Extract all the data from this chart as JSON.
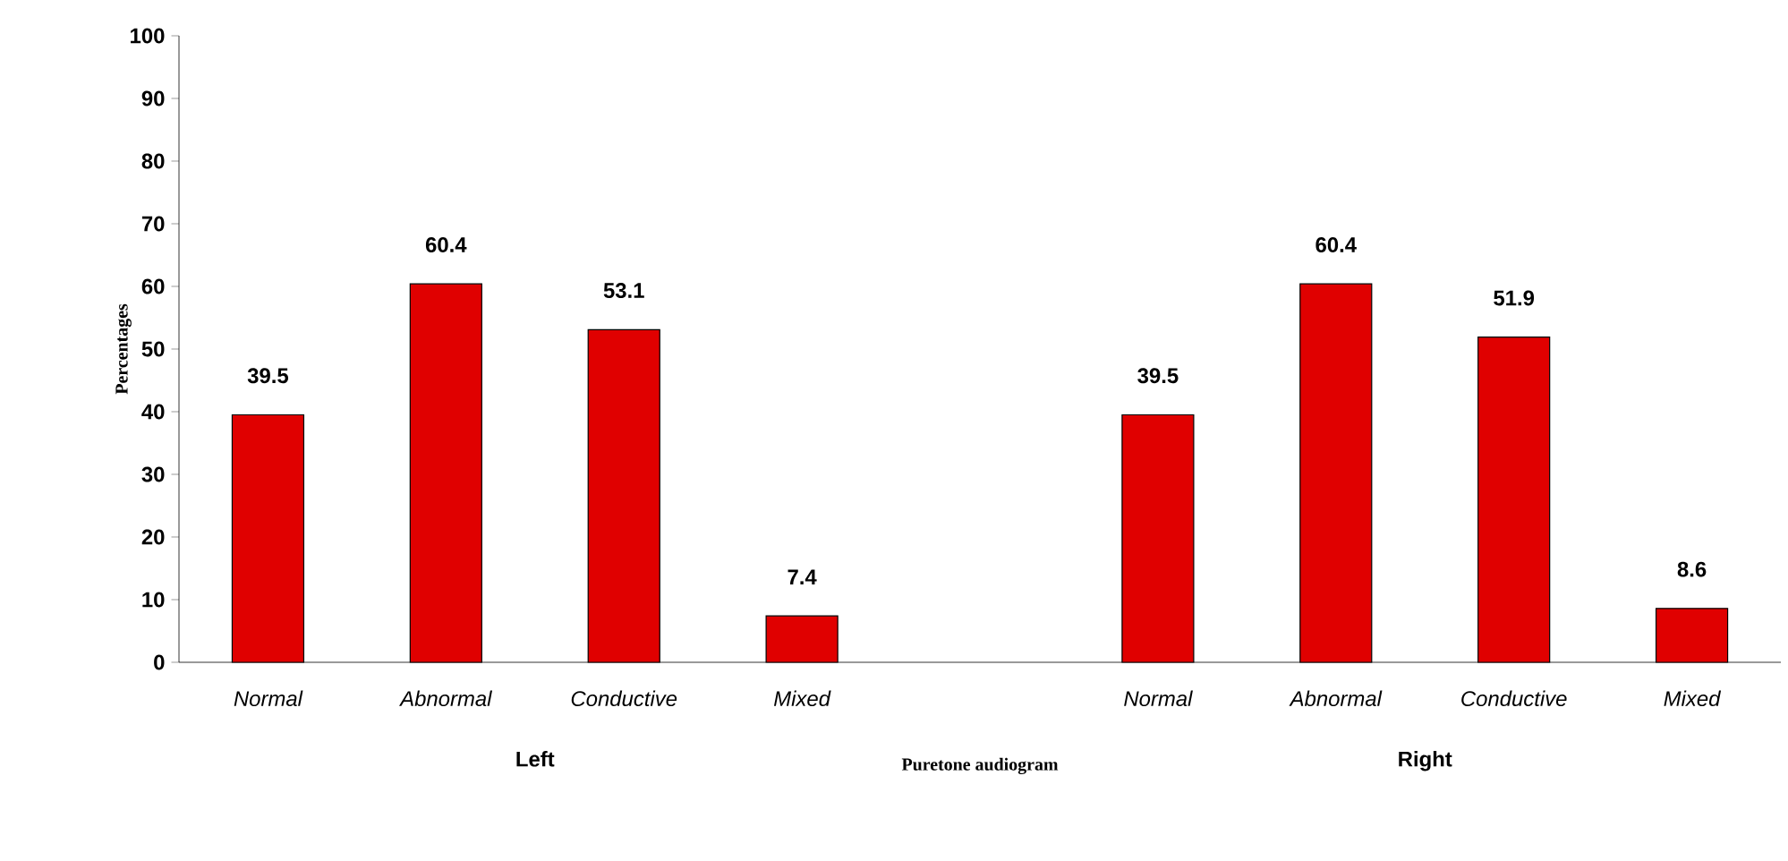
{
  "chart_data": {
    "type": "bar",
    "xlabel": "Puretone audiogram",
    "ylabel": "Percentages",
    "categories": [
      "Normal",
      "Abnormal",
      "Conductive",
      "Mixed",
      null,
      "Normal",
      "Abnormal",
      "Conductive",
      "Mixed"
    ],
    "values": [
      39.5,
      60.4,
      53.1,
      7.4,
      null,
      39.5,
      60.4,
      51.9,
      8.6
    ],
    "color": "#e00000",
    "data_labels": true,
    "ylim": [
      0,
      100
    ],
    "yticks": [
      0,
      10,
      20,
      30,
      40,
      50,
      60,
      70,
      80,
      90,
      100
    ],
    "annotations": [
      "Left",
      "Right"
    ]
  }
}
